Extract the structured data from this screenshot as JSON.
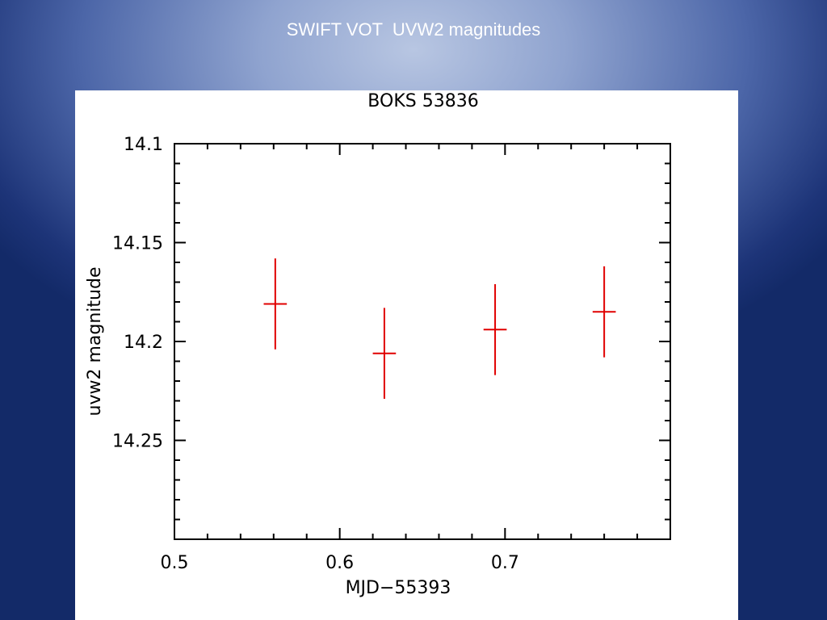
{
  "slide": {
    "title": "SWIFT VOT  UVW2 magnitudes"
  },
  "chart_data": {
    "type": "scatter",
    "title": "BOKS 53836",
    "xlabel": "MJD−55393",
    "ylabel": "uvw2  magnitude",
    "xlim": [
      0.5,
      0.8
    ],
    "ylim": [
      14.1,
      14.3
    ],
    "y_inverted": true,
    "x_ticks": [
      0.5,
      0.6,
      0.7
    ],
    "x_tick_labels": [
      "0.5",
      "0.6",
      "0.7"
    ],
    "y_ticks": [
      14.1,
      14.15,
      14.2,
      14.25
    ],
    "y_tick_labels": [
      "14.1",
      "14.15",
      "14.2",
      "14.25"
    ],
    "grid": false,
    "color": "#e00000",
    "points": [
      {
        "x": 0.561,
        "y": 14.181,
        "xerr": 0.007,
        "yerr": 0.023
      },
      {
        "x": 0.627,
        "y": 14.206,
        "xerr": 0.007,
        "yerr": 0.023
      },
      {
        "x": 0.694,
        "y": 14.194,
        "xerr": 0.007,
        "yerr": 0.023
      },
      {
        "x": 0.76,
        "y": 14.185,
        "xerr": 0.007,
        "yerr": 0.023
      }
    ]
  }
}
